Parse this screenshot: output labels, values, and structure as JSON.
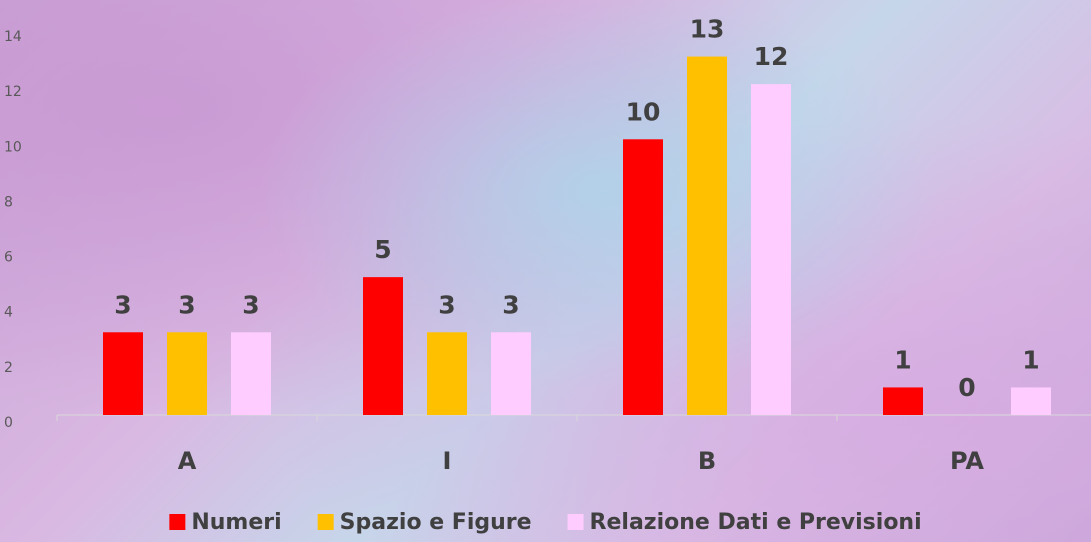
{
  "chart_data": {
    "type": "bar",
    "categories": [
      "A",
      "I",
      "B",
      "PA"
    ],
    "series": [
      {
        "name": "Numeri",
        "color": "#ff0000",
        "values": [
          3,
          5,
          10,
          1
        ]
      },
      {
        "name": "Spazio e Figure",
        "color": "#ffc000",
        "values": [
          3,
          3,
          13,
          0
        ]
      },
      {
        "name": "Relazione Dati e Previsioni",
        "color": "#ffccff",
        "values": [
          3,
          3,
          12,
          1
        ]
      }
    ],
    "ylim": [
      0,
      14
    ],
    "yticks": [
      0,
      2,
      4,
      6,
      8,
      10,
      12,
      14
    ],
    "grid": false,
    "legend": "bottom"
  }
}
